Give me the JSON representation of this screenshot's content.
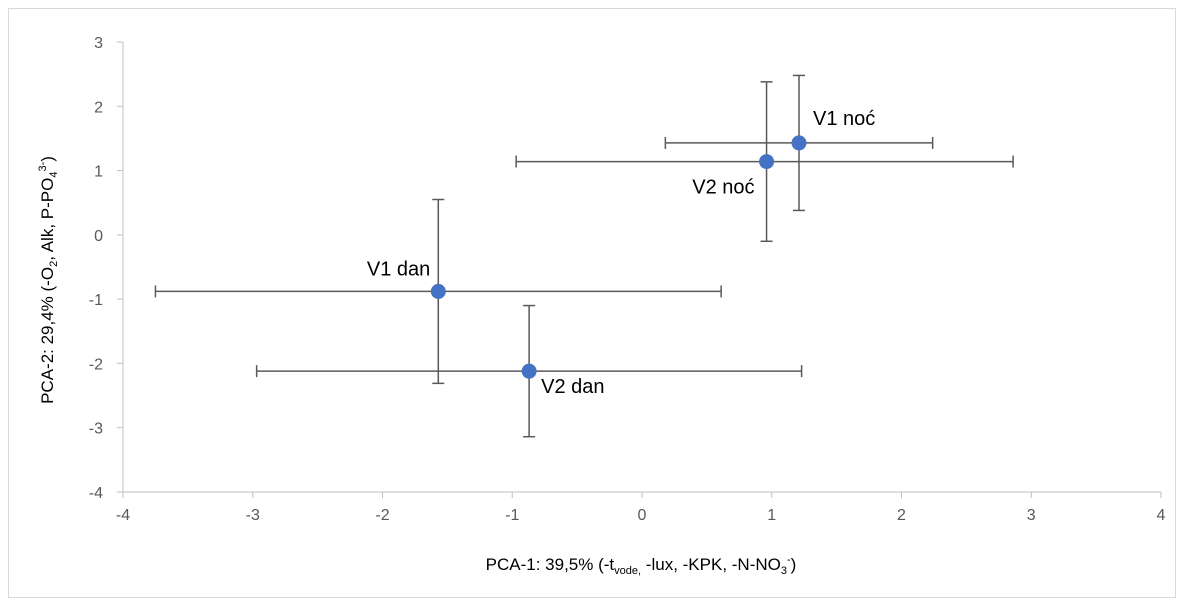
{
  "chart_data": {
    "type": "scatter",
    "xlim": [
      -4,
      4
    ],
    "ylim": [
      -4,
      3
    ],
    "x_ticks": [
      "-4",
      "-3",
      "-2",
      "-1",
      "0",
      "1",
      "2",
      "3",
      "4"
    ],
    "y_ticks": [
      "3",
      "2",
      "1",
      "0",
      "-1",
      "-2",
      "-3",
      "-4"
    ],
    "grid": false,
    "marker_color": "#4472c4",
    "errorbar_color": "#595959",
    "x_axis_title": {
      "text": "PCA-1: 39,5% (-t",
      "sub1": "vode,",
      "mid": " -lux, -KPK, -N-NO",
      "sub2": "3",
      "sup": "-",
      "end": ")"
    },
    "y_axis_title": {
      "text": "PCA-2: 29,4% (-O",
      "sub1": "2",
      "mid": ", Alk, P-PO",
      "sub2": "4",
      "sup": "3-",
      "end": ")"
    },
    "points": [
      {
        "label": "V1 noć",
        "x": 1.21,
        "y": 1.43,
        "x_err_minus": 1.03,
        "x_err_plus": 1.03,
        "y_err_minus": 1.05,
        "y_err_plus": 1.05
      },
      {
        "label": "V2 noć",
        "x": 0.96,
        "y": 1.14,
        "x_err_minus": 1.93,
        "x_err_plus": 1.9,
        "y_err_minus": 1.24,
        "y_err_plus": 1.24
      },
      {
        "label": "V1 dan",
        "x": -1.57,
        "y": -0.88,
        "x_err_minus": 2.18,
        "x_err_plus": 2.18,
        "y_err_minus": 1.43,
        "y_err_plus": 1.43
      },
      {
        "label": "V2 dan",
        "x": -0.87,
        "y": -2.12,
        "x_err_minus": 2.1,
        "x_err_plus": 2.1,
        "y_err_minus": 1.02,
        "y_err_plus": 1.02
      }
    ]
  }
}
